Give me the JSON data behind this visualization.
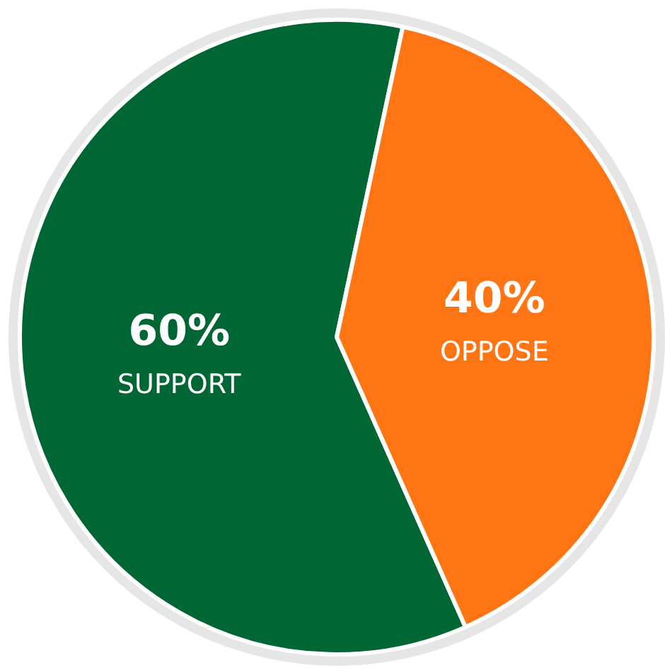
{
  "chart_data": {
    "type": "pie",
    "categories": [
      "SUPPORT",
      "OPPOSE"
    ],
    "values": [
      60,
      40
    ],
    "colors": [
      "#006633",
      "#ff7514"
    ],
    "value_labels": [
      "60%",
      "40%"
    ]
  }
}
